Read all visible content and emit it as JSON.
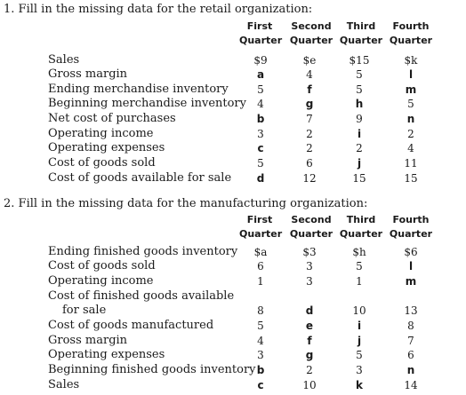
{
  "problem1": {
    "number": "1.",
    "prompt": "Fill in the missing data for the retail organization:",
    "headers": [
      [
        "First",
        "Quarter"
      ],
      [
        "Second",
        "Quarter"
      ],
      [
        "Third",
        "Quarter"
      ],
      [
        "Fourth",
        "Quarter"
      ]
    ],
    "rows": [
      {
        "label": "Sales",
        "cells": [
          "$9",
          "$e",
          "$15",
          "$k"
        ]
      },
      {
        "label": "Gross margin",
        "cells": [
          "a",
          "4",
          "5",
          "l"
        ]
      },
      {
        "label": "Ending merchandise inventory",
        "cells": [
          "5",
          "f",
          "5",
          "m"
        ]
      },
      {
        "label": "Beginning merchandise inventory",
        "cells": [
          "4",
          "g",
          "h",
          "5"
        ]
      },
      {
        "label": "Net cost of purchases",
        "cells": [
          "b",
          "7",
          "9",
          "n"
        ]
      },
      {
        "label": "Operating income",
        "cells": [
          "3",
          "2",
          "i",
          "2"
        ]
      },
      {
        "label": "Operating expenses",
        "cells": [
          "c",
          "2",
          "2",
          "4"
        ]
      },
      {
        "label": "Cost of goods sold",
        "cells": [
          "5",
          "6",
          "j",
          "11"
        ]
      },
      {
        "label": "Cost of goods available for sale",
        "cells": [
          "d",
          "12",
          "15",
          "15"
        ]
      }
    ]
  },
  "problem2": {
    "number": "2.",
    "prompt": "Fill in the missing data for the manufacturing organization:",
    "headers": [
      [
        "First",
        "Quarter"
      ],
      [
        "Second",
        "Quarter"
      ],
      [
        "Third",
        "Quarter"
      ],
      [
        "Fourth",
        "Quarter"
      ]
    ],
    "rows": [
      {
        "label": "Ending finished goods inventory",
        "cells": [
          "$a",
          "$3",
          "$h",
          "$6"
        ]
      },
      {
        "label": "Cost of goods sold",
        "cells": [
          "6",
          "3",
          "5",
          "l"
        ]
      },
      {
        "label": "Operating income",
        "cells": [
          "1",
          "3",
          "1",
          "m"
        ]
      },
      {
        "label": "Cost of finished goods available",
        "cells": [
          "",
          "",
          "",
          ""
        ]
      },
      {
        "label": "for sale",
        "cells": [
          "8",
          "d",
          "10",
          "13"
        ]
      },
      {
        "label": "Cost of goods manufactured",
        "cells": [
          "5",
          "e",
          "i",
          "8"
        ]
      },
      {
        "label": "Gross margin",
        "cells": [
          "4",
          "f",
          "j",
          "7"
        ]
      },
      {
        "label": "Operating expenses",
        "cells": [
          "3",
          "g",
          "5",
          "6"
        ]
      },
      {
        "label": "Beginning finished goods inventory",
        "cells": [
          "b",
          "2",
          "3",
          "n"
        ]
      },
      {
        "label": "Sales",
        "cells": [
          "c",
          "10",
          "k",
          "14"
        ]
      }
    ]
  }
}
